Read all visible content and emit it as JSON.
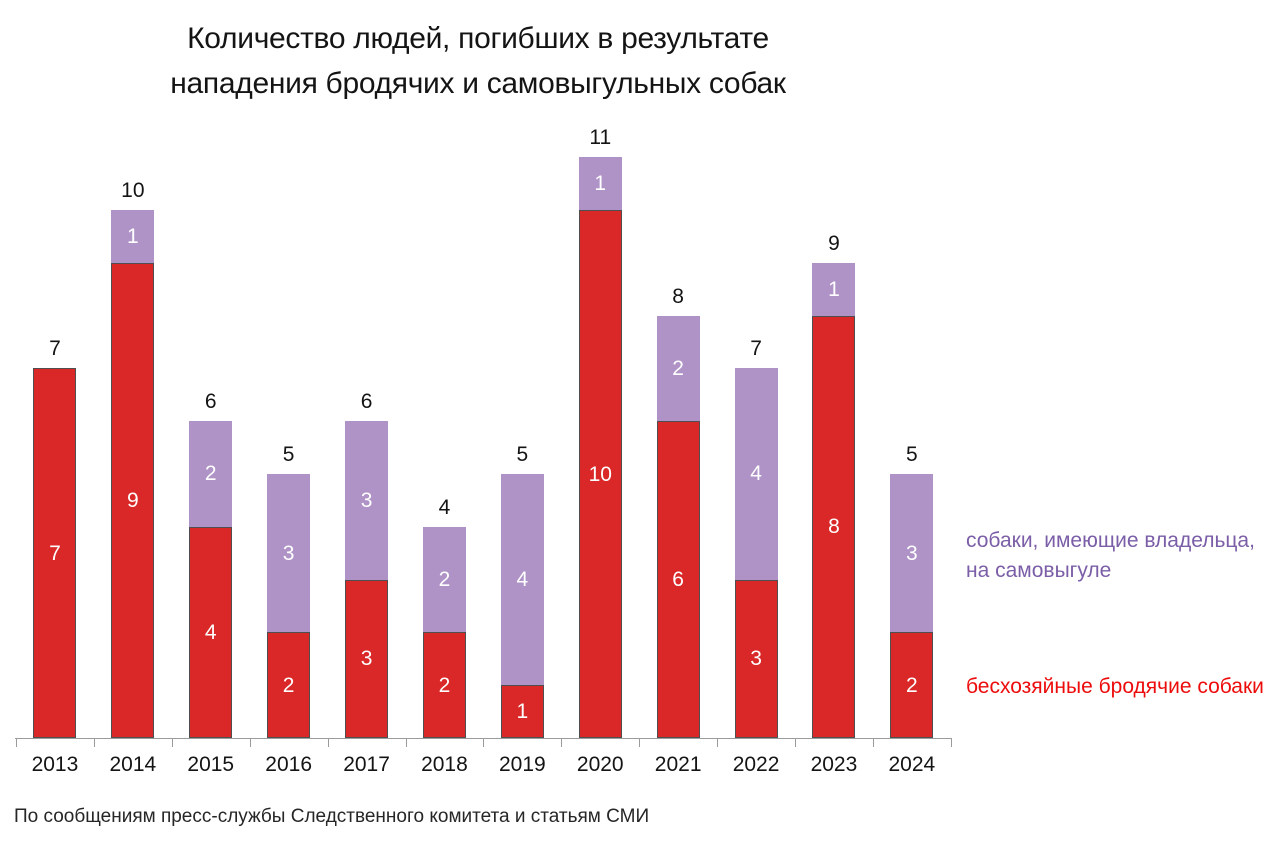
{
  "title": {
    "line1": "Количество людей, погибших в результате",
    "line2": "нападения бродячих и самовыгульных собак"
  },
  "legend": {
    "owned": {
      "line1": "собаки, имеющие владельца,",
      "line2": "на самовыгуле",
      "text_color": "#7b5ea7"
    },
    "stray": {
      "label": "бесхозяйные бродячие собаки",
      "text_color": "#ed0c0c"
    }
  },
  "source": "По сообщениям пресс-службы Следственного комитета и статьям СМИ",
  "colors": {
    "stray_bar": "#da2727",
    "owned_bar": "#af93c7",
    "stray_bar_border": "#4f4f4f",
    "axis": "#9b9b9b"
  },
  "chart_data": {
    "type": "bar",
    "stacked": true,
    "title": "Количество людей, погибших в результате нападения бродячих и самовыгульных собак",
    "categories": [
      "2013",
      "2014",
      "2015",
      "2016",
      "2017",
      "2018",
      "2019",
      "2020",
      "2021",
      "2022",
      "2023",
      "2024"
    ],
    "series": [
      {
        "name": "бесхозяйные бродячие собаки",
        "color": "#da2727",
        "values": [
          7,
          9,
          4,
          2,
          3,
          2,
          1,
          10,
          6,
          3,
          8,
          2
        ]
      },
      {
        "name": "собаки, имеющие владельца, на самовыгуле",
        "color": "#af93c7",
        "values": [
          0,
          1,
          2,
          3,
          3,
          2,
          4,
          1,
          2,
          4,
          1,
          3
        ]
      }
    ],
    "totals": [
      7,
      10,
      6,
      5,
      6,
      4,
      5,
      11,
      8,
      7,
      9,
      5
    ],
    "xlabel": "",
    "ylabel": "",
    "ylim": [
      0,
      11
    ],
    "grid": false,
    "value_labels": "inside segments, white",
    "total_labels": "above bars, black",
    "legend_position": "right of plot, color-coded text"
  }
}
